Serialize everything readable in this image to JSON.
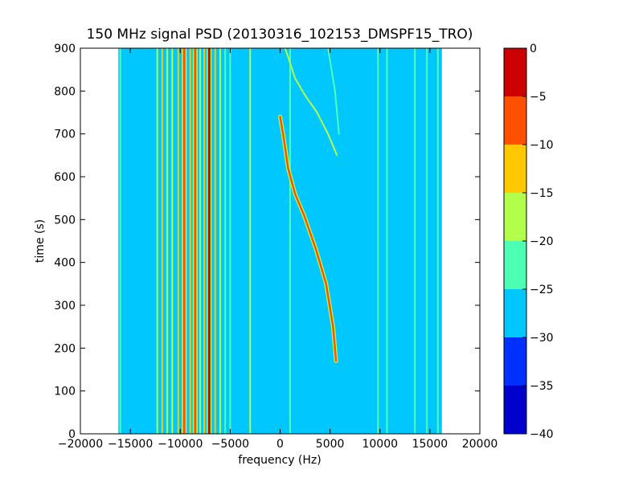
{
  "chart_data": {
    "type": "heatmap",
    "title": "150 MHz signal PSD (20130316_102153_DMSPF15_TRO)",
    "xlabel": "frequency (Hz)",
    "ylabel": "time (s)",
    "xlim": [
      -20000,
      20000
    ],
    "ylim": [
      0,
      900
    ],
    "xticks": [
      -20000,
      -15000,
      -10000,
      -5000,
      0,
      5000,
      10000,
      15000,
      20000
    ],
    "xtick_labels": [
      "−20000",
      "−15000",
      "−10000",
      "−5000",
      "0",
      "5000",
      "10000",
      "15000",
      "20000"
    ],
    "yticks": [
      0,
      100,
      200,
      300,
      400,
      500,
      600,
      700,
      800,
      900
    ],
    "ytick_labels": [
      "0",
      "100",
      "200",
      "300",
      "400",
      "500",
      "600",
      "700",
      "800",
      "900"
    ],
    "data_extent_x": [
      -16200,
      16200
    ],
    "background_level": -27.5,
    "colorbar": {
      "levels": [
        -40,
        -35,
        -30,
        -25,
        -20,
        -15,
        -10,
        -5,
        0
      ],
      "tick_labels": [
        "−40",
        "−35",
        "−30",
        "−25",
        "−20",
        "−15",
        "−10",
        "−5",
        "0"
      ],
      "colors": [
        "#0000cc",
        "#0030ff",
        "#00c8ff",
        "#4cffb2",
        "#b2ff4c",
        "#ffc800",
        "#ff5000",
        "#cc0000"
      ]
    },
    "vertical_lines": [
      {
        "f": -16000,
        "level": -22.5
      },
      {
        "f": -12300,
        "level": -17.5
      },
      {
        "f": -11800,
        "level": -12.5
      },
      {
        "f": -11300,
        "level": -17.5
      },
      {
        "f": -10800,
        "level": -17.5
      },
      {
        "f": -10200,
        "level": -12.5
      },
      {
        "f": -9600,
        "level": -7.5
      },
      {
        "f": -9000,
        "level": -12.5
      },
      {
        "f": -8500,
        "level": -7.5
      },
      {
        "f": -8000,
        "level": -17.5
      },
      {
        "f": -7600,
        "level": -12.5
      },
      {
        "f": -7100,
        "level": -2.5
      },
      {
        "f": -6500,
        "level": -12.5
      },
      {
        "f": -6000,
        "level": -17.5
      },
      {
        "f": -5500,
        "level": -22.5
      },
      {
        "f": -5000,
        "level": -22.5
      },
      {
        "f": -3000,
        "level": -17.5
      },
      {
        "f": 1000,
        "level": -22.5
      },
      {
        "f": 9800,
        "level": -22.5
      },
      {
        "f": 10700,
        "level": -22.5
      },
      {
        "f": 13500,
        "level": -22.5
      },
      {
        "f": 14700,
        "level": -22.5
      },
      {
        "f": 15800,
        "level": -22.5
      }
    ],
    "curves": [
      {
        "level": -7.5,
        "points": [
          [
            5600,
            170
          ],
          [
            5300,
            250
          ],
          [
            4600,
            350
          ],
          [
            3600,
            430
          ],
          [
            2400,
            510
          ],
          [
            1500,
            560
          ],
          [
            800,
            620
          ],
          [
            300,
            700
          ],
          [
            0,
            740
          ]
        ]
      },
      {
        "level": -17.5,
        "points": [
          [
            5700,
            650
          ],
          [
            4800,
            700
          ],
          [
            3700,
            750
          ],
          [
            2500,
            790
          ],
          [
            1500,
            830
          ],
          [
            800,
            880
          ],
          [
            500,
            900
          ]
        ]
      },
      {
        "level": -22.5,
        "points": [
          [
            5900,
            700
          ],
          [
            5500,
            800
          ],
          [
            4800,
            900
          ]
        ]
      }
    ]
  }
}
